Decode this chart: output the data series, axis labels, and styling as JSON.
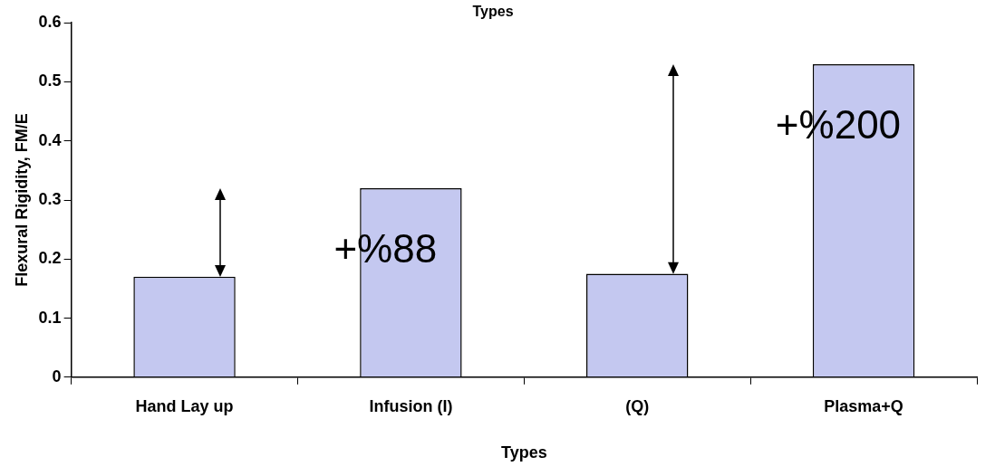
{
  "chart_data": {
    "type": "bar",
    "title": "Types",
    "xlabel": "Types",
    "ylabel": "Flexural Rigidity, FM/E",
    "categories": [
      "Hand Lay up",
      "Infusion (I)",
      "(Q)",
      "Plasma+Q"
    ],
    "values": [
      0.17,
      0.32,
      0.175,
      0.53
    ],
    "color": "#c4c8f0",
    "ylim": [
      0,
      0.6
    ],
    "yticks": [
      0,
      0.1,
      0.2,
      0.3,
      0.4,
      0.5,
      0.6
    ],
    "grid": false,
    "legend": false,
    "annotations": [
      "+%88",
      "+%200"
    ]
  }
}
